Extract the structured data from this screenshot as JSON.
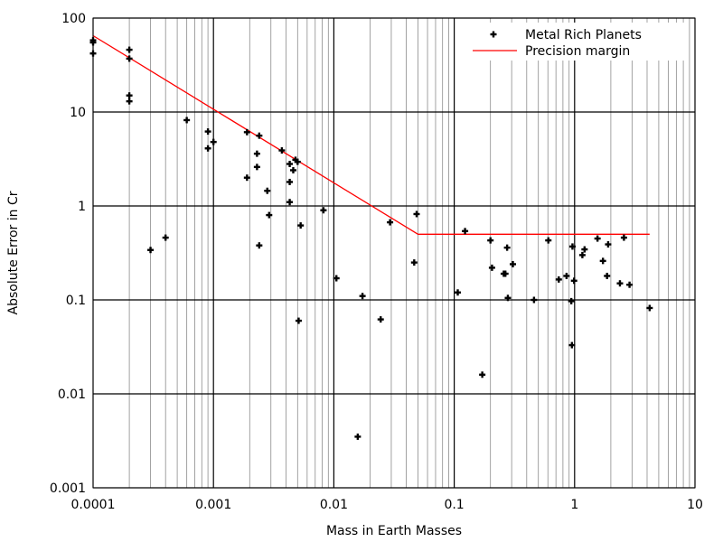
{
  "chart_data": {
    "type": "scatter",
    "xlabel": "Mass in Earth Masses",
    "ylabel": "Absolute Error in Cr",
    "xscale": "log",
    "yscale": "log",
    "xlim": [
      0.0001,
      10
    ],
    "ylim": [
      0.001,
      100
    ],
    "x_tick_labels": [
      "0.0001",
      "0.001",
      "0.01",
      "0.1",
      "1",
      "10"
    ],
    "y_tick_labels": [
      "0.001",
      "0.01",
      "0.1",
      "1",
      "10",
      "100"
    ],
    "grid": true,
    "legend_position": "top-right",
    "series": [
      {
        "name": "Metal Rich Planets",
        "kind": "scatter",
        "color": "#000000",
        "marker": "plus",
        "points": [
          [
            0.0001,
            58
          ],
          [
            0.0001,
            55
          ],
          [
            0.0001,
            42
          ],
          [
            0.0002,
            46
          ],
          [
            0.0002,
            37
          ],
          [
            0.0002,
            15
          ],
          [
            0.0002,
            13
          ],
          [
            0.0003,
            0.34
          ],
          [
            0.0004,
            0.46
          ],
          [
            0.0006,
            8.2
          ],
          [
            0.0009,
            6.2
          ],
          [
            0.0009,
            4.1
          ],
          [
            0.001,
            4.8
          ],
          [
            0.0019,
            6.1
          ],
          [
            0.0019,
            2.0
          ],
          [
            0.0023,
            3.6
          ],
          [
            0.0023,
            2.6
          ],
          [
            0.0024,
            5.6
          ],
          [
            0.0024,
            0.38
          ],
          [
            0.0028,
            1.45
          ],
          [
            0.0029,
            0.8
          ],
          [
            0.0037,
            3.9
          ],
          [
            0.0043,
            2.8
          ],
          [
            0.0043,
            1.8
          ],
          [
            0.0043,
            1.1
          ],
          [
            0.0046,
            2.4
          ],
          [
            0.0048,
            3.1
          ],
          [
            0.005,
            2.95
          ],
          [
            0.0051,
            0.06
          ],
          [
            0.0053,
            0.62
          ],
          [
            0.0082,
            0.9
          ],
          [
            0.0105,
            0.17
          ],
          [
            0.0158,
            0.0035
          ],
          [
            0.0173,
            0.11
          ],
          [
            0.0245,
            0.062
          ],
          [
            0.0293,
            0.67
          ],
          [
            0.0465,
            0.25
          ],
          [
            0.0487,
            0.82
          ],
          [
            0.107,
            0.12
          ],
          [
            0.123,
            0.54
          ],
          [
            0.171,
            0.016
          ],
          [
            0.2,
            0.43
          ],
          [
            0.206,
            0.22
          ],
          [
            0.258,
            0.19
          ],
          [
            0.266,
            0.19
          ],
          [
            0.275,
            0.36
          ],
          [
            0.279,
            0.105
          ],
          [
            0.307,
            0.24
          ],
          [
            0.46,
            0.1
          ],
          [
            0.605,
            0.43
          ],
          [
            0.739,
            0.165
          ],
          [
            0.857,
            0.18
          ],
          [
            0.939,
            0.097
          ],
          [
            0.95,
            0.033
          ],
          [
            0.96,
            0.37
          ],
          [
            0.99,
            0.16
          ],
          [
            1.16,
            0.3
          ],
          [
            1.21,
            0.345
          ],
          [
            1.55,
            0.45
          ],
          [
            1.72,
            0.26
          ],
          [
            1.86,
            0.18
          ],
          [
            1.9,
            0.39
          ],
          [
            2.38,
            0.15
          ],
          [
            2.57,
            0.46
          ],
          [
            2.86,
            0.145
          ],
          [
            4.2,
            0.082
          ]
        ]
      },
      {
        "name": "Precision margin",
        "kind": "line",
        "color": "#ff0000",
        "points": [
          [
            0.0001,
            65
          ],
          [
            0.05,
            0.5
          ],
          [
            4.2,
            0.5
          ]
        ]
      }
    ]
  }
}
